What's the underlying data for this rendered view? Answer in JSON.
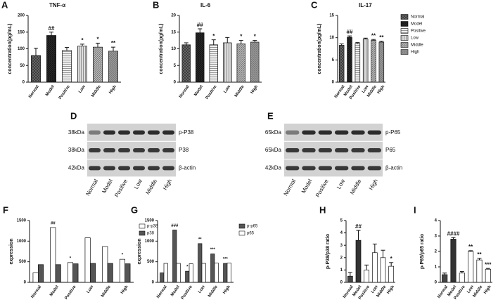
{
  "chart_data": [
    {
      "type": "bar",
      "panel": "A",
      "title": "TNF-α",
      "y_label": "concentration(pg/mL)",
      "categories": [
        "Normal",
        "Model",
        "Positive",
        "Low",
        "Middle",
        "High"
      ],
      "values": [
        80,
        140,
        95,
        108,
        105,
        93
      ],
      "errors": [
        22,
        10,
        9,
        6,
        12,
        12
      ],
      "annotations": [
        null,
        "##",
        null,
        "*",
        "*",
        "**"
      ],
      "colors": [
        "#666666",
        "#333333",
        "#eeeeee",
        "#dddddd",
        "#bbbbbb",
        "#999999"
      ],
      "ylim": [
        0,
        200
      ],
      "yticks": [
        0,
        50,
        100,
        150,
        200
      ]
    },
    {
      "type": "bar",
      "panel": "B",
      "title": "IL-6",
      "y_label": "concentration(pg/mL)",
      "categories": [
        "Normal",
        "Model",
        "Positive",
        "Low",
        "Middle",
        "High"
      ],
      "values": [
        11.2,
        14.8,
        11.2,
        11.8,
        11.5,
        12
      ],
      "errors": [
        0.6,
        1.2,
        1.5,
        1.6,
        1,
        0.5
      ],
      "annotations": [
        null,
        "##",
        "*",
        null,
        "*",
        "*"
      ],
      "colors": [
        "#666666",
        "#333333",
        "#eeeeee",
        "#dddddd",
        "#bbbbbb",
        "#999999"
      ],
      "ylim": [
        0,
        20
      ],
      "yticks": [
        0,
        5,
        10,
        15,
        20
      ]
    },
    {
      "type": "bar",
      "panel": "C",
      "title": "IL-17",
      "y_label": "concentration(pg/mL)",
      "categories": [
        "Normal",
        "Model",
        "Positive",
        "Low",
        "Middle",
        "High"
      ],
      "values": [
        8.3,
        10.1,
        8.7,
        9.7,
        9.4,
        9.0
      ],
      "errors": [
        0.3,
        0.3,
        0.2,
        0.2,
        0.2,
        0.2
      ],
      "annotations": [
        null,
        "##",
        null,
        null,
        "**",
        "**"
      ],
      "colors": [
        "#666666",
        "#333333",
        "#eeeeee",
        "#dddddd",
        "#bbbbbb",
        "#999999"
      ],
      "ylim": [
        0,
        15
      ],
      "yticks": [
        0,
        5,
        10,
        15
      ],
      "legend": true
    },
    {
      "type": "grouped",
      "panel": "F",
      "y_label": "expression",
      "categories": [
        "Normal",
        "Model",
        "Positive",
        "Low",
        "Middle",
        "High"
      ],
      "series": [
        {
          "name": "p-p38",
          "color": "#ffffff",
          "values": [
            230,
            1330,
            480,
            1080,
            870,
            560
          ],
          "annotations": [
            null,
            "##",
            "*",
            null,
            null,
            "*"
          ]
        },
        {
          "name": "p38",
          "color": "#555555",
          "values": [
            430,
            430,
            450,
            460,
            460,
            450
          ]
        }
      ],
      "ylim": [
        0,
        1500
      ],
      "yticks": [
        0,
        500,
        1000,
        1500
      ]
    },
    {
      "type": "grouped",
      "panel": "G",
      "y_label": "expression",
      "categories": [
        "Normal",
        "Model",
        "Positive",
        "Low",
        "Middle",
        "High"
      ],
      "series": [
        {
          "name": "p-p65",
          "color": "#555555",
          "values": [
            230,
            1270,
            270,
            940,
            690,
            460
          ],
          "annotations": [
            null,
            "###",
            "*",
            "**",
            "***",
            "***"
          ]
        },
        {
          "name": "p65",
          "color": "#ffffff",
          "values": [
            460,
            460,
            450,
            460,
            470,
            470
          ]
        }
      ],
      "ylim": [
        0,
        1500
      ],
      "yticks": [
        0,
        500,
        1000,
        1500
      ]
    },
    {
      "type": "bar",
      "panel": "H",
      "y_label": "p-P38/p38 ratio",
      "categories": [
        "Normal",
        "Model",
        "Positive",
        "Low",
        "Middle",
        "High"
      ],
      "values": [
        0.5,
        3.4,
        1.0,
        2.4,
        2.0,
        1.3
      ],
      "errors": [
        0.3,
        0.8,
        0.4,
        0.7,
        0.6,
        0.3
      ],
      "annotations": [
        null,
        "##",
        null,
        null,
        null,
        "*"
      ],
      "colors": [
        "#444444",
        "#333333",
        "#ffffff",
        "#ffffff",
        "#ffffff",
        "#ffffff"
      ],
      "ylim": [
        0,
        5
      ],
      "yticks": [
        0,
        1,
        2,
        3,
        4,
        5
      ]
    },
    {
      "type": "bar",
      "panel": "I",
      "y_label": "p-P65/p65 ratio",
      "categories": [
        "Normal",
        "Model",
        "Positive",
        "Low",
        "Middle",
        "High"
      ],
      "values": [
        0.5,
        2.8,
        0.6,
        2.0,
        1.45,
        0.85
      ],
      "errors": [
        0.1,
        0.1,
        0.1,
        0.05,
        0.1,
        0.05
      ],
      "annotations": [
        null,
        "####",
        null,
        "**",
        "**",
        "***"
      ],
      "colors": [
        "#444444",
        "#333333",
        "#ffffff",
        "#ffffff",
        "#ffffff",
        "#ffffff"
      ],
      "ylim": [
        0,
        4
      ],
      "yticks": [
        0,
        1,
        2,
        3,
        4
      ]
    }
  ],
  "blots": [
    {
      "panel": "D",
      "sizes": [
        "38kDa",
        "38kDa",
        "42kDa"
      ],
      "proteins": [
        "p-P38",
        "P38",
        "β-actin"
      ],
      "lanes": [
        "Normal",
        "Model",
        "Positive",
        "Low",
        "Middle",
        "High"
      ]
    },
    {
      "panel": "E",
      "sizes": [
        "65kDa",
        "65kDa",
        "42kDa"
      ],
      "proteins": [
        "p-P65",
        "P65",
        "β-actin"
      ],
      "lanes": [
        "Normal",
        "Model",
        "Positive",
        "Low",
        "Middle",
        "High"
      ]
    }
  ]
}
